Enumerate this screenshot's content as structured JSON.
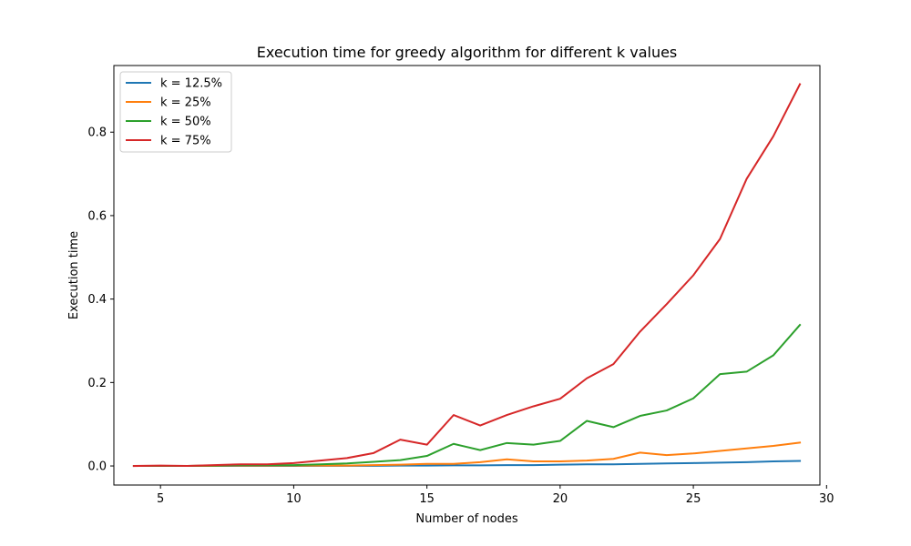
{
  "chart_data": {
    "type": "line",
    "title": "Execution time for greedy algorithm for different k values",
    "xlabel": "Number of nodes",
    "ylabel": "Execution time",
    "xlim": [
      3.25,
      29.75
    ],
    "ylim": [
      -0.0457,
      0.9597
    ],
    "xticks": [
      5,
      10,
      15,
      20,
      25,
      30
    ],
    "yticks": [
      0.0,
      0.2,
      0.4,
      0.6,
      0.8
    ],
    "xtick_labels": [
      "5",
      "10",
      "15",
      "20",
      "25",
      "30"
    ],
    "ytick_labels": [
      "0.0",
      "0.2",
      "0.4",
      "0.6",
      "0.8"
    ],
    "grid": false,
    "legend_position": "top-left",
    "x": [
      4,
      5,
      6,
      7,
      8,
      9,
      10,
      11,
      12,
      13,
      14,
      15,
      16,
      17,
      18,
      19,
      20,
      21,
      22,
      23,
      24,
      25,
      26,
      27,
      28,
      29
    ],
    "series": [
      {
        "name": "k = 12.5%",
        "color": "#1f77b4",
        "values": [
          0.0,
          0.0,
          0.0,
          0.0,
          0.0,
          0.0,
          0.0,
          0.0005,
          0.0005,
          0.0005,
          0.001,
          0.001,
          0.0015,
          0.0015,
          0.002,
          0.002,
          0.003,
          0.004,
          0.004,
          0.005,
          0.006,
          0.007,
          0.008,
          0.009,
          0.011,
          0.012
        ]
      },
      {
        "name": "k = 25%",
        "color": "#ff7f0e",
        "values": [
          0.0,
          0.0,
          0.0,
          0.0005,
          0.001,
          0.001,
          0.001,
          0.001,
          0.001,
          0.002,
          0.003,
          0.005,
          0.005,
          0.009,
          0.016,
          0.011,
          0.011,
          0.013,
          0.017,
          0.032,
          0.026,
          0.03,
          0.036,
          0.042,
          0.048,
          0.056
        ]
      },
      {
        "name": "k = 50%",
        "color": "#2ca02c",
        "values": [
          0.0,
          0.0,
          0.0,
          0.001,
          0.002,
          0.002,
          0.002,
          0.004,
          0.006,
          0.01,
          0.014,
          0.024,
          0.053,
          0.038,
          0.055,
          0.051,
          0.06,
          0.108,
          0.093,
          0.12,
          0.133,
          0.162,
          0.22,
          0.226,
          0.265,
          0.338
        ]
      },
      {
        "name": "k = 75%",
        "color": "#d62728",
        "values": [
          0.0,
          0.001,
          0.0,
          0.002,
          0.004,
          0.004,
          0.007,
          0.013,
          0.019,
          0.031,
          0.063,
          0.051,
          0.122,
          0.097,
          0.122,
          0.143,
          0.161,
          0.21,
          0.244,
          0.322,
          0.388,
          0.457,
          0.544,
          0.688,
          0.79,
          0.915
        ]
      }
    ]
  }
}
